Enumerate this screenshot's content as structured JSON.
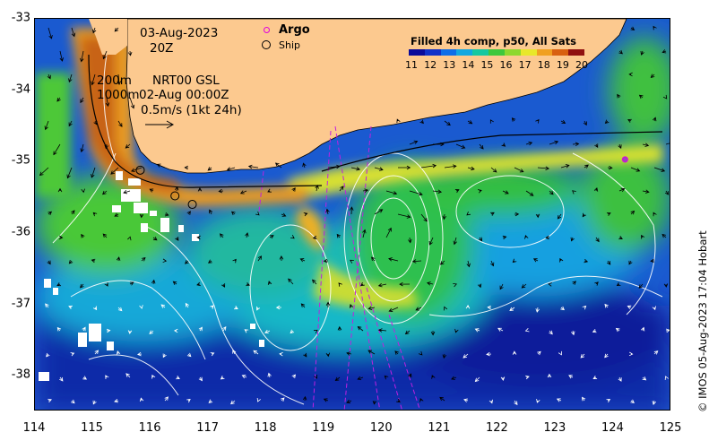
{
  "map": {
    "date": "03-Aug-2023",
    "time": "20Z",
    "depth_line_1": "200m",
    "product_line_1": "NRT00 GSL",
    "depth_line_2": "1000m",
    "product_line_2": "02-Aug 00:00Z",
    "scale_label": "0.5m/s (1kt 24h)",
    "lon_range": [
      114,
      125
    ],
    "lat_range": [
      -38.5,
      -33
    ],
    "x_ticks": [
      "114",
      "115",
      "116",
      "117",
      "118",
      "119",
      "120",
      "121",
      "122",
      "123",
      "124",
      "125"
    ],
    "y_ticks": [
      "-33",
      "-34",
      "-35",
      "-36",
      "-37",
      "-38"
    ],
    "land_color": "#fcc98f"
  },
  "legend": {
    "argo_label": "Argo",
    "ship_label": "Ship",
    "title": "Filled 4h comp, p50, All Sats",
    "colorbar_ticks": [
      "11",
      "12",
      "13",
      "14",
      "15",
      "16",
      "17",
      "18",
      "19",
      "20"
    ],
    "colorbar_colors": [
      "#0a0a9a",
      "#1030c8",
      "#0e6ee8",
      "#12a8e0",
      "#16c8a0",
      "#3ec83c",
      "#8ed82e",
      "#e8e82a",
      "#f0a020",
      "#d86010",
      "#901010"
    ]
  },
  "markers": {
    "argo": [
      {
        "lon": 124.2,
        "lat": -34.97
      }
    ],
    "ship": [
      {
        "lon": 115.82,
        "lat": -35.12
      },
      {
        "lon": 116.42,
        "lat": -35.48
      },
      {
        "lon": 116.72,
        "lat": -35.6
      }
    ]
  },
  "credit": "© IMOS 05-Aug-2023 17:04 Hobart"
}
